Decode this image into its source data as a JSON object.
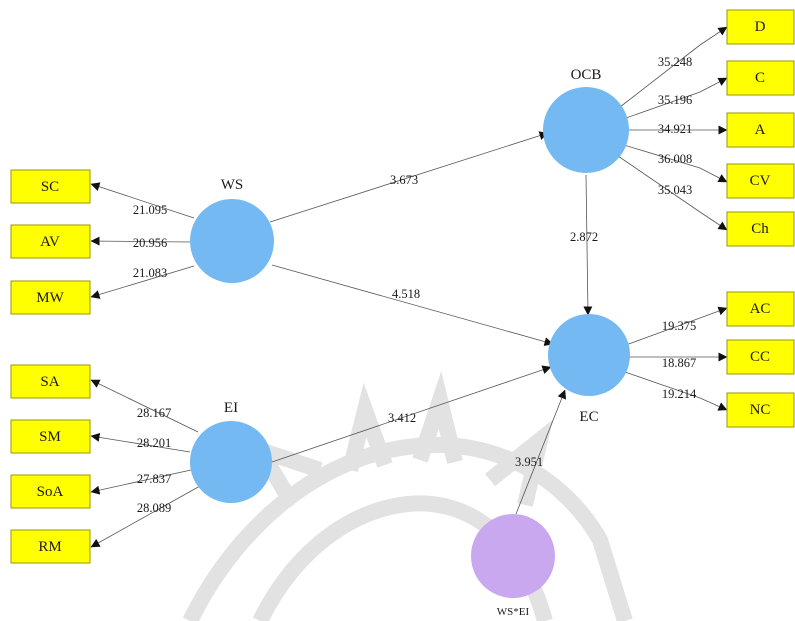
{
  "colors": {
    "construct": "#74b9f2",
    "moderator": "#c9a8f0",
    "indicator": "#ffff00",
    "indicator_border": "#9a9a00",
    "edge": "#555555"
  },
  "constructs": {
    "ws": "WS",
    "ei": "EI",
    "ocb": "OCB",
    "ec": "EC",
    "wsei": "WS*EI"
  },
  "indicators": {
    "sc": "SC",
    "av": "AV",
    "mw": "MW",
    "sa": "SA",
    "sm": "SM",
    "soa": "SoA",
    "rm": "RM",
    "d": "D",
    "c": "C",
    "a": "A",
    "cv": "CV",
    "ch": "Ch",
    "ac": "AC",
    "cc": "CC",
    "nc": "NC"
  },
  "loadings": {
    "ws_sc": "21.095",
    "ws_av": "20.956",
    "ws_mw": "21.083",
    "ei_sa": "28.167",
    "ei_sm": "28.201",
    "ei_soa": "27.837",
    "ei_rm": "28.089",
    "ocb_d": "35.248",
    "ocb_c": "35.196",
    "ocb_a": "34.921",
    "ocb_cv": "36.008",
    "ocb_ch": "35.043",
    "ec_ac": "19.375",
    "ec_cc": "18.867",
    "ec_nc": "19.214"
  },
  "paths": {
    "ws_ocb": "3.673",
    "ws_ec": "4.518",
    "ocb_ec": "2.872",
    "ei_ec": "3.412",
    "wsei_ec": "3.951"
  }
}
